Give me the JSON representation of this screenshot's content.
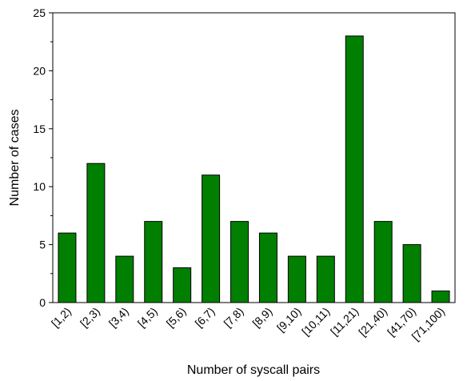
{
  "chart_data": {
    "type": "bar",
    "categories": [
      "[1,2)",
      "[2,3)",
      "[3,4)",
      "[4,5)",
      "[5,6)",
      "[6,7)",
      "[7,8)",
      "[8,9)",
      "[9,10)",
      "[10,11)",
      "[11,21)",
      "[21,40)",
      "[41,70)",
      "[71,100)"
    ],
    "values": [
      6,
      12,
      4,
      7,
      3,
      11,
      7,
      6,
      4,
      4,
      23,
      7,
      5,
      1
    ],
    "xlabel": "Number of syscall pairs",
    "ylabel": "Number of cases",
    "ylim": [
      0,
      25
    ],
    "yticks": [
      0,
      5,
      10,
      15,
      20,
      25
    ],
    "grid": false,
    "bar_color": "#007f00",
    "bar_edge_color": "#000000"
  }
}
